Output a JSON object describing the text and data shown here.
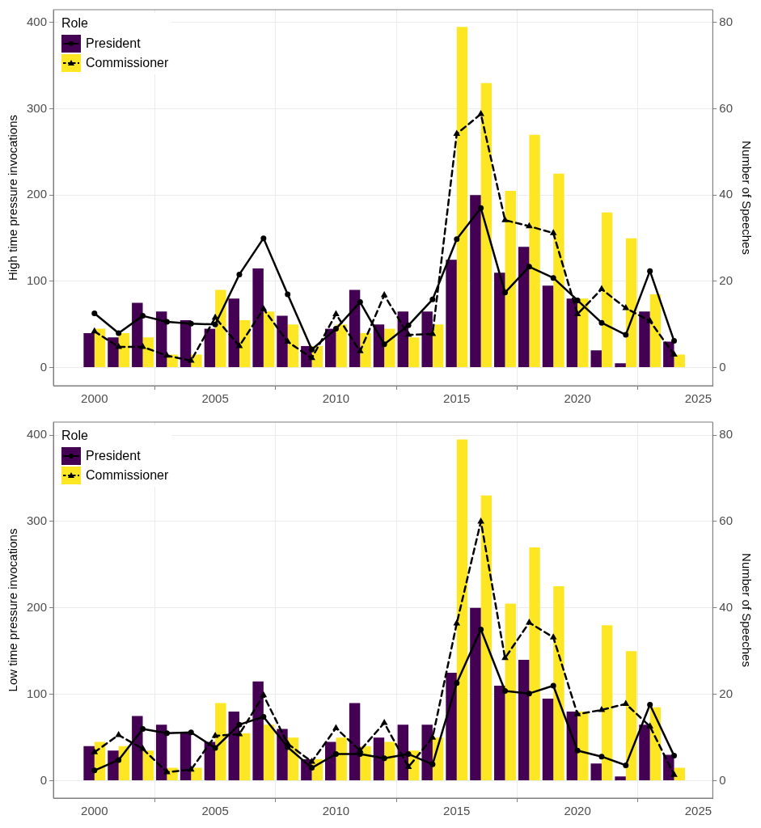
{
  "chart_data": [
    {
      "type": "bar",
      "ylabel": "High time pressure invocations",
      "y2label": "Number of Speeches",
      "legend_title": "Role",
      "legend": "top left",
      "grid": true,
      "x": [
        2000,
        2001,
        2002,
        2003,
        2004,
        2005,
        2006,
        2007,
        2008,
        2009,
        2010,
        2011,
        2012,
        2013,
        2014,
        2015,
        2016,
        2017,
        2018,
        2019,
        2020,
        2021,
        2022,
        2023,
        2024
      ],
      "xlim": [
        1998.3,
        2025.6
      ],
      "xticks": [
        2000,
        2005,
        2010,
        2015,
        2020,
        2025
      ],
      "ylim": [
        -21,
        415
      ],
      "yticks": [
        0,
        100,
        200,
        300,
        400
      ],
      "y2lim": [
        -4.2,
        83
      ],
      "y2ticks": [
        0,
        20,
        40,
        60,
        80
      ],
      "series": [
        {
          "name": "President",
          "axis": "y2",
          "color": "#440154",
          "values": [
            8,
            7,
            15,
            13,
            11,
            9,
            16,
            23,
            12,
            5,
            9,
            18,
            10,
            13,
            13,
            25,
            40,
            22,
            28,
            19,
            16,
            4,
            1,
            13,
            6
          ]
        },
        {
          "name": "Commissioner",
          "axis": "y2",
          "color": "#fde725",
          "values": [
            9,
            8,
            7,
            3,
            3,
            18,
            11,
            13,
            10,
            5,
            10,
            8,
            9,
            7,
            10,
            79,
            66,
            41,
            54,
            45,
            16,
            36,
            30,
            17,
            3
          ]
        },
        {
          "type": "line",
          "color": "#000000",
          "marker": "circle",
          "line_style": "solid",
          "values": [
            63,
            40,
            60,
            53,
            51,
            50,
            108,
            150,
            85,
            21,
            45,
            76,
            27,
            49,
            79,
            149,
            185,
            87,
            117,
            104,
            78,
            52,
            38,
            112,
            31
          ]
        },
        {
          "type": "line",
          "color": "#000000",
          "marker": "triangle",
          "line_style": "dashed",
          "values": [
            42,
            24,
            24,
            14,
            8,
            58,
            25,
            68,
            30,
            11,
            62,
            19,
            84,
            38,
            39,
            271,
            294,
            171,
            164,
            156,
            62,
            91,
            69,
            54,
            15
          ]
        }
      ]
    },
    {
      "type": "bar",
      "ylabel": "Low time pressure invocations",
      "y2label": "Number of Speeches",
      "legend_title": "Role",
      "legend": "top left",
      "grid": true,
      "x": [
        2000,
        2001,
        2002,
        2003,
        2004,
        2005,
        2006,
        2007,
        2008,
        2009,
        2010,
        2011,
        2012,
        2013,
        2014,
        2015,
        2016,
        2017,
        2018,
        2019,
        2020,
        2021,
        2022,
        2023,
        2024
      ],
      "xlim": [
        1998.3,
        2025.6
      ],
      "xticks": [
        2000,
        2005,
        2010,
        2015,
        2020,
        2025
      ],
      "ylim": [
        -20,
        415
      ],
      "yticks": [
        0,
        100,
        200,
        300,
        400
      ],
      "y2lim": [
        -4,
        83
      ],
      "y2ticks": [
        0,
        20,
        40,
        60,
        80
      ],
      "series": [
        {
          "name": "President",
          "axis": "y2",
          "color": "#440154",
          "values": [
            8,
            7,
            15,
            13,
            11,
            9,
            16,
            23,
            12,
            5,
            9,
            18,
            10,
            13,
            13,
            25,
            40,
            22,
            28,
            19,
            16,
            4,
            1,
            13,
            6
          ]
        },
        {
          "name": "Commissioner",
          "axis": "y2",
          "color": "#fde725",
          "values": [
            9,
            8,
            7,
            3,
            3,
            18,
            11,
            13,
            10,
            5,
            10,
            8,
            9,
            7,
            10,
            79,
            66,
            41,
            54,
            45,
            16,
            36,
            30,
            17,
            3
          ]
        },
        {
          "type": "line",
          "color": "#000000",
          "marker": "circle",
          "line_style": "solid",
          "values": [
            12,
            24,
            60,
            55,
            56,
            38,
            65,
            74,
            39,
            15,
            31,
            31,
            26,
            31,
            19,
            113,
            175,
            104,
            101,
            110,
            35,
            28,
            18,
            88,
            29
          ]
        },
        {
          "type": "line",
          "color": "#000000",
          "marker": "triangle",
          "line_style": "dashed",
          "values": [
            33,
            53,
            37,
            10,
            13,
            52,
            54,
            99,
            43,
            22,
            61,
            35,
            67,
            16,
            50,
            182,
            300,
            142,
            183,
            166,
            77,
            82,
            89,
            63,
            7
          ]
        }
      ]
    }
  ]
}
